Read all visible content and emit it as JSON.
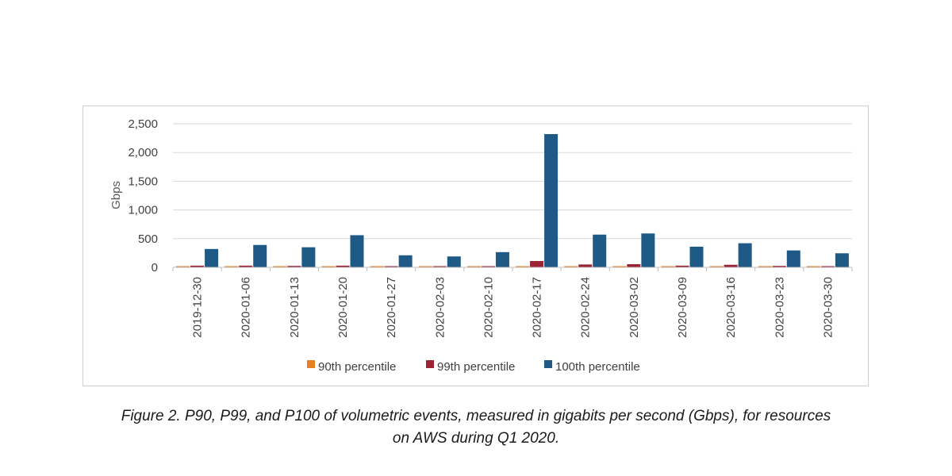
{
  "chart_data": {
    "type": "bar",
    "ylabel": "Gbps",
    "ylim": [
      0,
      2500
    ],
    "yticks": [
      0,
      500,
      1000,
      1500,
      2000,
      2500
    ],
    "ytick_labels": [
      "0",
      "500",
      "1,000",
      "1,500",
      "2,000",
      "2,500"
    ],
    "grid": true,
    "legend_position": "bottom",
    "categories": [
      "2019-12-30",
      "2020-01-06",
      "2020-01-13",
      "2020-01-20",
      "2020-01-27",
      "2020-02-03",
      "2020-02-10",
      "2020-02-17",
      "2020-02-24",
      "2020-03-02",
      "2020-03-09",
      "2020-03-16",
      "2020-03-23",
      "2020-03-30"
    ],
    "series": [
      {
        "name": "90th percentile",
        "color": "#e67e22",
        "values": [
          5,
          5,
          5,
          5,
          5,
          5,
          5,
          5,
          5,
          5,
          5,
          5,
          5,
          5
        ]
      },
      {
        "name": "99th percentile",
        "color": "#9b2335",
        "values": [
          30,
          30,
          25,
          30,
          20,
          20,
          20,
          110,
          50,
          55,
          30,
          45,
          25,
          15
        ]
      },
      {
        "name": "100th percentile",
        "color": "#1f5a86",
        "values": [
          320,
          390,
          350,
          560,
          210,
          190,
          265,
          2320,
          570,
          590,
          360,
          420,
          295,
          245
        ]
      }
    ]
  },
  "caption": {
    "line1": "Figure 2. P90, P99, and P100 of volumetric events, measured in gigabits per second (Gbps), for resources",
    "line2": "on AWS during Q1 2020."
  }
}
